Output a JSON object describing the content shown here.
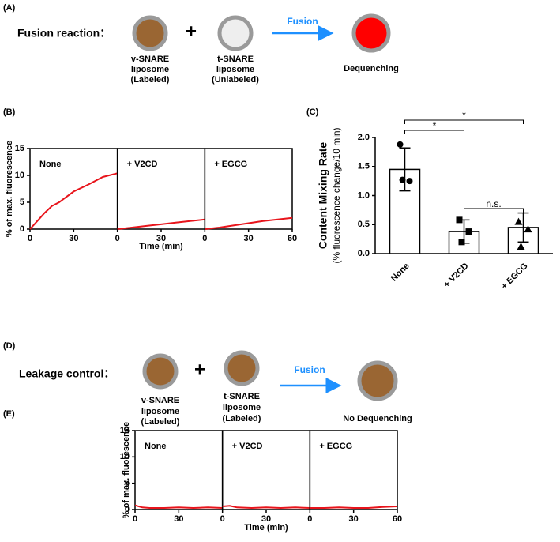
{
  "diagrams": [
    {
      "label": "(A)",
      "title": "Fusion reaction：",
      "plus": "+",
      "arrow": "Fusion",
      "left": [
        "v-SNARE",
        "liposome",
        "(Labeled)"
      ],
      "middle": [
        "t-SNARE",
        "liposome",
        "(Unlabeled)"
      ],
      "result": "Dequenching"
    },
    {
      "label": "(D)",
      "title": "Leakage control：",
      "plus": "+",
      "arrow": "Fusion",
      "left": [
        "v-SNARE",
        "liposome",
        "(Labeled)"
      ],
      "middle": [
        "t-SNARE",
        "liposome",
        "(Labeled)"
      ],
      "result": "No Dequenching"
    }
  ],
  "chart_data": [
    {
      "type": "line",
      "label": "(B)",
      "ylabel": "% of max. fluorescence",
      "xlabel": "Time (min)",
      "color": "#e8141b",
      "xlim": [
        0,
        60
      ],
      "ylim": [
        0,
        15
      ],
      "yticks": [
        0,
        5,
        10,
        15
      ],
      "panels": [
        {
          "name": "None",
          "xticks": [
            0,
            30
          ],
          "x": [
            0,
            5,
            10,
            15,
            20,
            25,
            30,
            40,
            50,
            60
          ],
          "values": [
            0,
            1.5,
            3,
            4.3,
            5,
            6,
            7,
            8.3,
            9.7,
            10.4
          ]
        },
        {
          "name": "+ V2CD",
          "xticks": [
            0,
            30
          ],
          "x": [
            0,
            10,
            20,
            30,
            40,
            50,
            60
          ],
          "values": [
            0,
            0.3,
            0.6,
            0.9,
            1.2,
            1.5,
            1.8
          ]
        },
        {
          "name": "+ EGCG",
          "xticks": [
            0,
            30,
            60
          ],
          "x": [
            0,
            10,
            20,
            30,
            40,
            50,
            60
          ],
          "values": [
            0,
            0.3,
            0.7,
            1.1,
            1.5,
            1.8,
            2.1
          ]
        }
      ]
    },
    {
      "type": "bar",
      "label": "(C)",
      "ylabel": "Content Mixing Rate",
      "ylabel2": "(% fluorescence change/10 min)",
      "categories": [
        "None",
        "+ V2CD",
        "+ EGCG"
      ],
      "values": [
        1.45,
        0.38,
        0.45
      ],
      "errors": [
        0.37,
        0.2,
        0.25
      ],
      "points": [
        [
          1.88,
          1.25,
          1.27
        ],
        [
          0.58,
          0.38,
          0.2
        ],
        [
          0.55,
          0.42,
          0.12
        ]
      ],
      "markers": [
        "circle",
        "square",
        "triangle"
      ],
      "ylim": [
        0,
        2
      ],
      "yticks": [
        {
          "value": 0,
          "label": "0.0"
        },
        0.5,
        {
          "value": 1,
          "label": "1.0"
        },
        1.5,
        {
          "value": 2,
          "label": "2.0"
        }
      ],
      "significance": [
        {
          "from": 0,
          "to": 1,
          "label": "*"
        },
        {
          "from": 0,
          "to": 2,
          "label": "*"
        },
        {
          "from": 1,
          "to": 2,
          "label": "n.s."
        }
      ]
    },
    {
      "type": "line",
      "label": "(E)",
      "ylabel": "% of max. fluorescence",
      "xlabel": "Time (min)",
      "color": "#e8141b",
      "xlim": [
        0,
        60
      ],
      "ylim": [
        0,
        15
      ],
      "yticks": [
        0,
        5,
        10,
        15
      ],
      "panels": [
        {
          "name": "None",
          "xticks": [
            0,
            30
          ],
          "x": [
            0,
            5,
            10,
            20,
            30,
            40,
            50,
            60
          ],
          "values": [
            0.8,
            0.4,
            0.3,
            0.3,
            0.4,
            0.3,
            0.4,
            0.3
          ]
        },
        {
          "name": "+ V2CD",
          "xticks": [
            0,
            30
          ],
          "x": [
            0,
            5,
            10,
            20,
            30,
            40,
            50,
            60
          ],
          "values": [
            0.6,
            0.7,
            0.4,
            0.3,
            0.4,
            0.3,
            0.4,
            0.3
          ]
        },
        {
          "name": "+ EGCG",
          "xticks": [
            0,
            30,
            60
          ],
          "x": [
            0,
            10,
            20,
            30,
            40,
            50,
            60
          ],
          "values": [
            0.3,
            0.3,
            0.4,
            0.3,
            0.3,
            0.5,
            0.6
          ]
        }
      ]
    }
  ]
}
